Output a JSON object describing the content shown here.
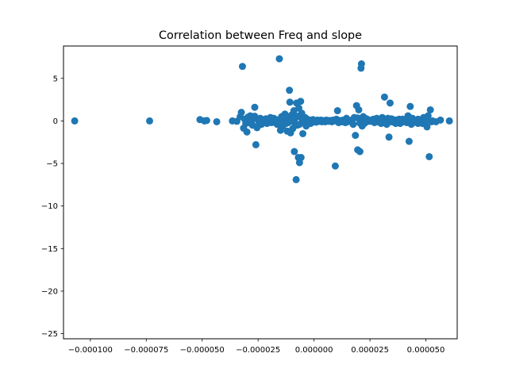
{
  "chart_data": {
    "type": "scatter",
    "title": "Correlation between Freq and slope",
    "xlabel": "",
    "ylabel": "",
    "xlim": [
      -0.000112,
      6.4e-05
    ],
    "ylim": [
      -25.6,
      8.8
    ],
    "xticks": [
      -0.0001,
      -7.5e-05,
      -5e-05,
      -2.5e-05,
      0.0,
      2.5e-05,
      5e-05
    ],
    "xtick_labels": [
      "−0.000100",
      "−0.000075",
      "−0.000050",
      "−0.000025",
      "0.000000",
      "0.000025",
      "0.000050"
    ],
    "yticks": [
      5,
      0,
      -5,
      -10,
      -15,
      -20,
      -25
    ],
    "ytick_labels": [
      "5",
      "0",
      "−5",
      "−10",
      "−15",
      "−20",
      "−25"
    ],
    "grid": false,
    "marker_color": "#1f77b4",
    "series": [
      {
        "points": [
          [
            -0.000107,
            0.0
          ],
          [
            -7.35e-05,
            0.0
          ],
          [
            -5.1e-05,
            0.15
          ],
          [
            -4.9e-05,
            0.0
          ],
          [
            -4.8e-05,
            0.05
          ],
          [
            -4.35e-05,
            -0.1
          ],
          [
            -3.65e-05,
            0.0
          ],
          [
            -3.45e-05,
            -0.05
          ],
          [
            -3.3e-05,
            0.5
          ],
          [
            -3.25e-05,
            1.0
          ],
          [
            -3.2e-05,
            6.4
          ],
          [
            -3.15e-05,
            -0.85
          ],
          [
            -3.1e-05,
            0.2
          ],
          [
            -3.05e-05,
            -0.3
          ],
          [
            -3e-05,
            -1.3
          ],
          [
            -2.95e-05,
            0.45
          ],
          [
            -2.9e-05,
            -0.1
          ],
          [
            -2.85e-05,
            0.6
          ],
          [
            -2.8e-05,
            0.0
          ],
          [
            -2.75e-05,
            -0.5
          ],
          [
            -2.7e-05,
            0.35
          ],
          [
            -2.65e-05,
            1.6
          ],
          [
            -2.6e-05,
            -2.8
          ],
          [
            -2.55e-05,
            -0.8
          ],
          [
            -2.5e-05,
            0.1
          ],
          [
            -2.45e-05,
            -0.2
          ],
          [
            -2.4e-05,
            0.3
          ],
          [
            -2.35e-05,
            -0.4
          ],
          [
            -2.3e-05,
            0.15
          ],
          [
            -2.25e-05,
            -0.15
          ],
          [
            -2.2e-05,
            0.05
          ],
          [
            -2.15e-05,
            0.25
          ],
          [
            -2.1e-05,
            -0.3
          ],
          [
            -2.05e-05,
            0.1
          ],
          [
            -2e-05,
            -0.05
          ],
          [
            -1.95e-05,
            0.2
          ],
          [
            -1.9e-05,
            -0.2
          ],
          [
            -1.85e-05,
            0.0
          ],
          [
            -1.8e-05,
            0.3
          ],
          [
            -1.75e-05,
            -0.1
          ],
          [
            -1.7e-05,
            0.15
          ],
          [
            -1.65e-05,
            -0.4
          ],
          [
            -1.6e-05,
            0.1
          ],
          [
            -1.55e-05,
            7.3
          ],
          [
            -1.5e-05,
            -1.1
          ],
          [
            -1.45e-05,
            0.5
          ],
          [
            -1.4e-05,
            -0.6
          ],
          [
            -1.35e-05,
            0.2
          ],
          [
            -1.3e-05,
            0.8
          ],
          [
            -1.25e-05,
            -0.3
          ],
          [
            -1.2e-05,
            -1.2
          ],
          [
            -1.15e-05,
            0.4
          ],
          [
            -1.1e-05,
            3.6
          ],
          [
            -1.08e-05,
            2.2
          ],
          [
            -1.05e-05,
            -1.4
          ],
          [
            -1e-05,
            0.7
          ],
          [
            -9.5e-06,
            -0.9
          ],
          [
            -9e-06,
            1.2
          ],
          [
            -8.8e-06,
            -3.6
          ],
          [
            -8.5e-06,
            0.3
          ],
          [
            -8e-06,
            -6.9
          ],
          [
            -7.8e-06,
            2.1
          ],
          [
            -7.5e-06,
            -0.5
          ],
          [
            -7e-06,
            -4.3
          ],
          [
            -6.8e-06,
            1.5
          ],
          [
            -6.5e-06,
            -4.9
          ],
          [
            -6e-06,
            2.3
          ],
          [
            -5.8e-06,
            -4.3
          ],
          [
            -5.5e-06,
            0.9
          ],
          [
            -5e-06,
            -1.5
          ],
          [
            -4.5e-06,
            -0.2
          ],
          [
            -4e-06,
            0.4
          ],
          [
            -3.5e-06,
            -0.6
          ],
          [
            -3e-06,
            0.2
          ],
          [
            -2.5e-06,
            -0.1
          ],
          [
            -2e-06,
            0.1
          ],
          [
            -1.5e-06,
            -0.3
          ],
          [
            -1e-06,
            0.0
          ],
          [
            -5e-07,
            0.15
          ],
          [
            0.0,
            -0.1
          ],
          [
            5e-07,
            0.05
          ],
          [
            1e-06,
            -0.15
          ],
          [
            1.5e-06,
            0.1
          ],
          [
            2e-06,
            0.0
          ],
          [
            2.5e-06,
            -0.05
          ],
          [
            3e-06,
            0.1
          ],
          [
            3.5e-06,
            -0.1
          ],
          [
            4e-06,
            0.05
          ],
          [
            4.5e-06,
            0.0
          ],
          [
            5e-06,
            -0.1
          ],
          [
            5.5e-06,
            0.1
          ],
          [
            6e-06,
            0.0
          ],
          [
            6.5e-06,
            -0.05
          ],
          [
            7e-06,
            0.05
          ],
          [
            7.5e-06,
            0.0
          ],
          [
            8e-06,
            -0.1
          ],
          [
            8.5e-06,
            0.1
          ],
          [
            9e-06,
            0.0
          ],
          [
            9.5e-06,
            -5.3
          ],
          [
            1e-05,
            0.2
          ],
          [
            1.05e-05,
            1.2
          ],
          [
            1.1e-05,
            -0.2
          ],
          [
            1.15e-05,
            0.05
          ],
          [
            1.2e-05,
            0.0
          ],
          [
            1.25e-05,
            -0.1
          ],
          [
            1.3e-05,
            0.1
          ],
          [
            1.35e-05,
            0.0
          ],
          [
            1.4e-05,
            -0.2
          ],
          [
            1.45e-05,
            0.3
          ],
          [
            1.5e-05,
            -0.1
          ],
          [
            1.55e-05,
            0.1
          ],
          [
            1.6e-05,
            0.0
          ],
          [
            1.65e-05,
            -0.05
          ],
          [
            1.7e-05,
            0.1
          ],
          [
            1.75e-05,
            -0.4
          ],
          [
            1.8e-05,
            0.4
          ],
          [
            1.85e-05,
            -1.7
          ],
          [
            1.9e-05,
            1.8
          ],
          [
            1.95e-05,
            -3.4
          ],
          [
            2e-05,
            1.3
          ],
          [
            2.05e-05,
            -3.6
          ],
          [
            2.1e-05,
            6.2
          ],
          [
            2.12e-05,
            6.7
          ],
          [
            2.15e-05,
            -0.6
          ],
          [
            2.2e-05,
            0.5
          ],
          [
            2.25e-05,
            -0.3
          ],
          [
            2.3e-05,
            0.2
          ],
          [
            2.35e-05,
            -0.1
          ],
          [
            2.4e-05,
            0.1
          ],
          [
            2.45e-05,
            0.0
          ],
          [
            2.5e-05,
            -0.05
          ],
          [
            2.55e-05,
            0.1
          ],
          [
            2.6e-05,
            0.0
          ],
          [
            2.65e-05,
            0.2
          ],
          [
            2.7e-05,
            -0.2
          ],
          [
            2.75e-05,
            0.1
          ],
          [
            2.8e-05,
            0.3
          ],
          [
            2.85e-05,
            -0.1
          ],
          [
            2.9e-05,
            0.2
          ],
          [
            2.95e-05,
            0.0
          ],
          [
            3e-05,
            -0.3
          ],
          [
            3.05e-05,
            0.4
          ],
          [
            3.1e-05,
            -0.2
          ],
          [
            3.15e-05,
            2.8
          ],
          [
            3.2e-05,
            0.1
          ],
          [
            3.25e-05,
            -0.4
          ],
          [
            3.3e-05,
            0.3
          ],
          [
            3.35e-05,
            -1.9
          ],
          [
            3.4e-05,
            2.1
          ],
          [
            3.45e-05,
            -0.1
          ],
          [
            3.5e-05,
            0.2
          ],
          [
            3.55e-05,
            0.0
          ],
          [
            3.6e-05,
            -0.2
          ],
          [
            3.65e-05,
            0.1
          ],
          [
            3.7e-05,
            0.0
          ],
          [
            3.75e-05,
            -0.1
          ],
          [
            3.8e-05,
            0.2
          ],
          [
            3.85e-05,
            -0.3
          ],
          [
            3.9e-05,
            0.0
          ],
          [
            3.95e-05,
            0.1
          ],
          [
            4e-05,
            -0.1
          ],
          [
            4.05e-05,
            0.05
          ],
          [
            4.1e-05,
            0.2
          ],
          [
            4.15e-05,
            -0.2
          ],
          [
            4.2e-05,
            0.6
          ],
          [
            4.25e-05,
            -2.4
          ],
          [
            4.3e-05,
            1.7
          ],
          [
            4.35e-05,
            -0.4
          ],
          [
            4.4e-05,
            0.3
          ],
          [
            4.45e-05,
            -0.1
          ],
          [
            4.5e-05,
            0.1
          ],
          [
            4.55e-05,
            0.0
          ],
          [
            4.6e-05,
            -0.2
          ],
          [
            4.65e-05,
            0.2
          ],
          [
            4.7e-05,
            0.0
          ],
          [
            4.75e-05,
            -0.1
          ],
          [
            4.8e-05,
            0.1
          ],
          [
            4.85e-05,
            -0.3
          ],
          [
            4.9e-05,
            0.4
          ],
          [
            4.95e-05,
            -0.2
          ],
          [
            5e-05,
            0.1
          ],
          [
            5.05e-05,
            -0.7
          ],
          [
            5.1e-05,
            0.6
          ],
          [
            5.15e-05,
            -4.2
          ],
          [
            5.2e-05,
            1.3
          ],
          [
            5.25e-05,
            -0.1
          ],
          [
            5.3e-05,
            0.0
          ],
          [
            5.45e-05,
            -0.1
          ],
          [
            5.65e-05,
            0.1
          ],
          [
            6.05e-05,
            0.0
          ],
          [
            -2.85e-05,
            -0.25
          ],
          [
            -2.65e-05,
            0.55
          ],
          [
            -2.45e-05,
            -0.45
          ],
          [
            -1.95e-05,
            0.4
          ],
          [
            -1.75e-05,
            0.2
          ],
          [
            -1.55e-05,
            -0.35
          ],
          [
            -1.45e-05,
            0.3
          ],
          [
            -1.25e-05,
            0.45
          ],
          [
            -1.15e-05,
            -0.2
          ],
          [
            -9.5e-06,
            0.25
          ],
          [
            -8.5e-06,
            -0.3
          ],
          [
            -7.5e-06,
            0.55
          ],
          [
            -6.5e-06,
            -0.4
          ],
          [
            -5.5e-06,
            0.3
          ],
          [
            -4.5e-06,
            0.2
          ],
          [
            1.95e-05,
            0.35
          ],
          [
            2.05e-05,
            -0.25
          ],
          [
            2.15e-05,
            0.3
          ],
          [
            2.25e-05,
            -0.2
          ],
          [
            2.35e-05,
            0.25
          ],
          [
            3.45e-05,
            0.25
          ],
          [
            3.65e-05,
            -0.3
          ],
          [
            3.95e-05,
            0.2
          ],
          [
            4.35e-05,
            0.3
          ],
          [
            4.65e-05,
            -0.3
          ]
        ]
      }
    ]
  }
}
